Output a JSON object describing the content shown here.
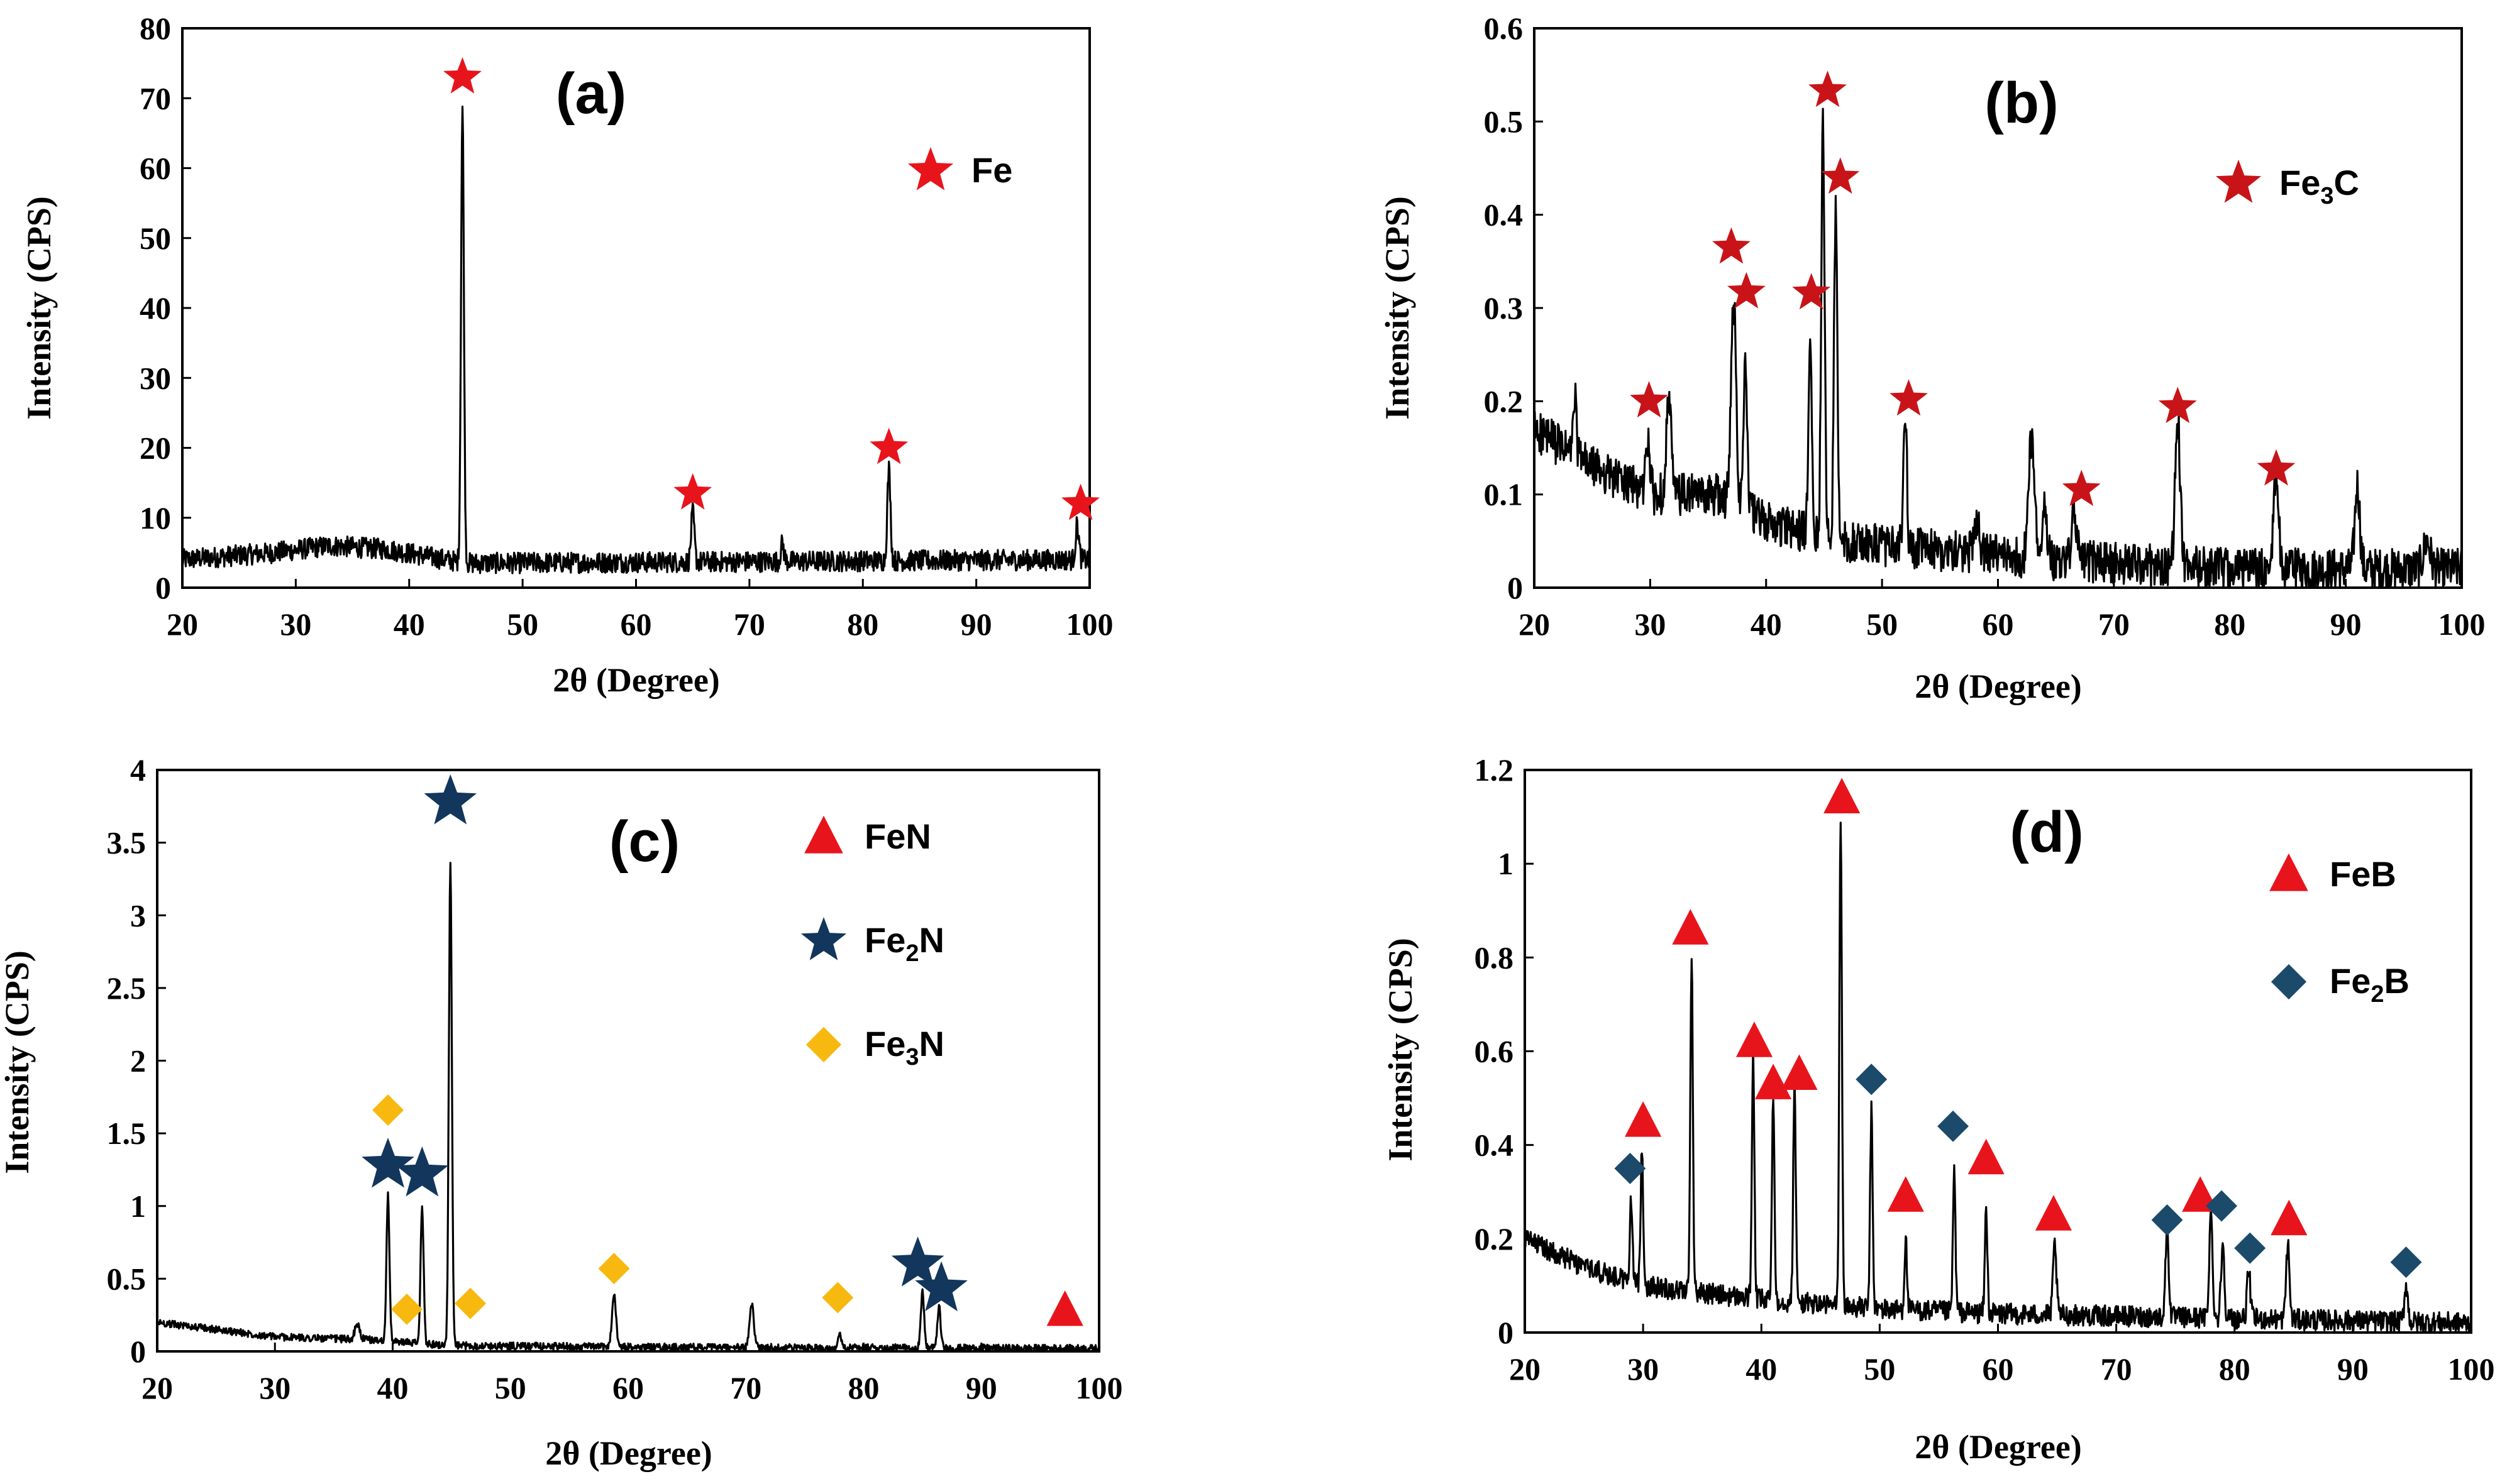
{
  "chart_data": [
    {
      "type": "line",
      "panel_label": "(a)",
      "xlabel": "2θ (Degree)",
      "ylabel": "Intensity (CPS)",
      "xlim": [
        20,
        100
      ],
      "ylim": [
        0,
        80
      ],
      "xticks": [
        "20",
        "30",
        "40",
        "50",
        "60",
        "70",
        "80",
        "90",
        "100"
      ],
      "yticks": [
        "0",
        "10",
        "20",
        "30",
        "40",
        "50",
        "60",
        "70",
        "80"
      ],
      "baseline": 4,
      "noise": 3,
      "baseline_profile": [
        [
          20,
          4
        ],
        [
          28,
          5
        ],
        [
          33,
          6
        ],
        [
          38,
          5.5
        ],
        [
          45,
          3.5
        ],
        [
          100,
          4
        ]
      ],
      "peaks": [
        [
          44.7,
          65,
          0.18
        ],
        [
          65.0,
          7,
          0.2
        ],
        [
          72.9,
          2.5,
          0.2
        ],
        [
          82.3,
          13,
          0.2
        ],
        [
          98.9,
          5,
          0.2
        ]
      ],
      "legend": [
        {
          "marker": "star",
          "color": "#e8141c",
          "label": "Fe",
          "sub": ""
        }
      ],
      "markers": [
        {
          "type": "star",
          "color": "#e8141c",
          "x": 44.7,
          "y": 73
        },
        {
          "type": "star",
          "color": "#e8141c",
          "x": 65.0,
          "y": 13.5
        },
        {
          "type": "star",
          "color": "#e8141c",
          "x": 82.3,
          "y": 20
        },
        {
          "type": "star",
          "color": "#e8141c",
          "x": 99.2,
          "y": 12
        }
      ]
    },
    {
      "type": "line",
      "panel_label": "(b)",
      "xlabel": "2θ (Degree)",
      "ylabel": "Intensity  (CPS)",
      "xlim": [
        20,
        100
      ],
      "ylim": [
        0,
        0.6
      ],
      "xticks": [
        "20",
        "30",
        "40",
        "50",
        "60",
        "70",
        "80",
        "90",
        "100"
      ],
      "yticks": [
        "0",
        "0.1",
        "0.2",
        "0.3",
        "0.4",
        "0.5",
        "0.6"
      ],
      "baseline": 0.05,
      "noise": 0.045,
      "baseline_profile": [
        [
          20,
          0.17
        ],
        [
          25,
          0.13
        ],
        [
          30,
          0.1
        ],
        [
          36,
          0.1
        ],
        [
          40,
          0.07
        ],
        [
          46,
          0.05
        ],
        [
          55,
          0.04
        ],
        [
          65,
          0.03
        ],
        [
          80,
          0.02
        ],
        [
          100,
          0.02
        ]
      ],
      "peaks": [
        [
          23.5,
          0.06,
          0.2
        ],
        [
          29.8,
          0.06,
          0.25
        ],
        [
          31.6,
          0.1,
          0.3
        ],
        [
          37.2,
          0.22,
          0.3
        ],
        [
          38.2,
          0.15,
          0.25
        ],
        [
          43.8,
          0.23,
          0.2
        ],
        [
          44.9,
          0.46,
          0.2
        ],
        [
          46.0,
          0.36,
          0.2
        ],
        [
          52.0,
          0.15,
          0.2
        ],
        [
          58.2,
          0.04,
          0.3
        ],
        [
          62.9,
          0.13,
          0.35
        ],
        [
          64.0,
          0.06,
          0.3
        ],
        [
          66.6,
          0.05,
          0.3
        ],
        [
          75.5,
          0.16,
          0.3
        ],
        [
          84.0,
          0.1,
          0.3
        ],
        [
          91.0,
          0.09,
          0.3
        ],
        [
          97.0,
          0.03,
          0.4
        ]
      ],
      "legend": [
        {
          "marker": "star",
          "color": "#c81418",
          "label": "Fe",
          "sub": "3",
          "suffix": "C"
        }
      ],
      "markers": [
        {
          "type": "star",
          "color": "#c81418",
          "x": 29.9,
          "y": 0.2
        },
        {
          "type": "star",
          "color": "#c81418",
          "x": 37.0,
          "y": 0.365
        },
        {
          "type": "star",
          "color": "#c81418",
          "x": 38.3,
          "y": 0.317
        },
        {
          "type": "star",
          "color": "#c81418",
          "x": 43.9,
          "y": 0.316
        },
        {
          "type": "star",
          "color": "#c81418",
          "x": 45.3,
          "y": 0.533
        },
        {
          "type": "star",
          "color": "#c81418",
          "x": 46.4,
          "y": 0.44
        },
        {
          "type": "star",
          "color": "#c81418",
          "x": 52.3,
          "y": 0.202
        },
        {
          "type": "star",
          "color": "#c81418",
          "x": 67.2,
          "y": 0.105
        },
        {
          "type": "star",
          "color": "#c81418",
          "x": 75.5,
          "y": 0.194
        },
        {
          "type": "star",
          "color": "#c81418",
          "x": 84.0,
          "y": 0.127
        }
      ]
    },
    {
      "type": "line",
      "panel_label": "(c)",
      "xlabel": "2θ (Degree)",
      "ylabel": "Intensity (CPS)",
      "xlim": [
        20,
        100
      ],
      "ylim": [
        0,
        4
      ],
      "xticks": [
        "20",
        "30",
        "40",
        "50",
        "60",
        "70",
        "80",
        "90",
        "100"
      ],
      "yticks": [
        "0",
        "0.5",
        "1",
        "1.5",
        "2",
        "2.5",
        "3",
        "3.5",
        "4"
      ],
      "baseline": 0.05,
      "noise": 0.05,
      "baseline_profile": [
        [
          20,
          0.2
        ],
        [
          25,
          0.15
        ],
        [
          30,
          0.1
        ],
        [
          38,
          0.08
        ],
        [
          45,
          0.04
        ],
        [
          60,
          0.03
        ],
        [
          100,
          0.02
        ]
      ],
      "peaks": [
        [
          37.0,
          0.1,
          0.3
        ],
        [
          39.6,
          1.0,
          0.18
        ],
        [
          42.5,
          0.95,
          0.18
        ],
        [
          44.9,
          3.3,
          0.18
        ],
        [
          58.8,
          0.35,
          0.25
        ],
        [
          70.5,
          0.3,
          0.25
        ],
        [
          78.0,
          0.08,
          0.25
        ],
        [
          85.0,
          0.38,
          0.2
        ],
        [
          86.4,
          0.28,
          0.2
        ]
      ],
      "legend": [
        {
          "marker": "triangle",
          "color": "#e8141c",
          "label": "FeN",
          "sub": ""
        },
        {
          "marker": "star",
          "color": "#12365c",
          "label": "Fe",
          "sub": "2",
          "suffix": "N"
        },
        {
          "marker": "diamond",
          "color": "#f7b80f",
          "label": "Fe",
          "sub": "3",
          "suffix": "N"
        }
      ],
      "markers": [
        {
          "type": "star",
          "color": "#12365c",
          "x": 39.6,
          "y": 1.28
        },
        {
          "type": "star",
          "color": "#12365c",
          "x": 42.5,
          "y": 1.22
        },
        {
          "type": "star",
          "color": "#12365c",
          "x": 44.9,
          "y": 3.78
        },
        {
          "type": "star",
          "color": "#12365c",
          "x": 84.6,
          "y": 0.6
        },
        {
          "type": "star",
          "color": "#12365c",
          "x": 86.6,
          "y": 0.43
        },
        {
          "type": "diamond",
          "color": "#f7b80f",
          "x": 39.6,
          "y": 1.66
        },
        {
          "type": "diamond",
          "color": "#f7b80f",
          "x": 41.2,
          "y": 0.29
        },
        {
          "type": "diamond",
          "color": "#f7b80f",
          "x": 46.6,
          "y": 0.33
        },
        {
          "type": "diamond",
          "color": "#f7b80f",
          "x": 58.8,
          "y": 0.57
        },
        {
          "type": "diamond",
          "color": "#f7b80f",
          "x": 77.8,
          "y": 0.37
        },
        {
          "type": "triangle",
          "color": "#e8141c",
          "x": 97.1,
          "y": 0.28
        }
      ]
    },
    {
      "type": "line",
      "panel_label": "(d)",
      "xlabel": "2θ (Degree)",
      "ylabel": "Intensity (CPS)",
      "xlim": [
        20,
        100
      ],
      "ylim": [
        0,
        1.2
      ],
      "xticks": [
        "20",
        "30",
        "40",
        "50",
        "60",
        "70",
        "80",
        "90",
        "100"
      ],
      "yticks": [
        "0",
        "0.2",
        "0.4",
        "0.6",
        "0.8",
        "1",
        "1.2"
      ],
      "baseline": 0.05,
      "noise": 0.045,
      "baseline_profile": [
        [
          20,
          0.2
        ],
        [
          25,
          0.14
        ],
        [
          30,
          0.1
        ],
        [
          40,
          0.07
        ],
        [
          50,
          0.05
        ],
        [
          60,
          0.04
        ],
        [
          80,
          0.03
        ],
        [
          100,
          0.02
        ]
      ],
      "peaks": [
        [
          29.0,
          0.18,
          0.15
        ],
        [
          29.9,
          0.3,
          0.15
        ],
        [
          34.1,
          0.72,
          0.15
        ],
        [
          39.3,
          0.52,
          0.15
        ],
        [
          41.0,
          0.44,
          0.15
        ],
        [
          42.8,
          0.47,
          0.15
        ],
        [
          46.7,
          1.05,
          0.15
        ],
        [
          49.3,
          0.42,
          0.15
        ],
        [
          52.2,
          0.15,
          0.15
        ],
        [
          56.3,
          0.3,
          0.15
        ],
        [
          59.0,
          0.22,
          0.15
        ],
        [
          64.8,
          0.15,
          0.2
        ],
        [
          74.3,
          0.18,
          0.2
        ],
        [
          78.0,
          0.22,
          0.2
        ],
        [
          79.0,
          0.16,
          0.2
        ],
        [
          81.2,
          0.1,
          0.2
        ],
        [
          84.5,
          0.16,
          0.2
        ],
        [
          94.5,
          0.08,
          0.2
        ]
      ],
      "legend": [
        {
          "marker": "triangle",
          "color": "#e8141c",
          "label": "FeB",
          "sub": ""
        },
        {
          "marker": "diamond",
          "color": "#1b4a6b",
          "label": "Fe",
          "sub": "2",
          "suffix": "B"
        }
      ],
      "markers": [
        {
          "type": "triangle",
          "color": "#e8141c",
          "x": 30.0,
          "y": 0.45
        },
        {
          "type": "triangle",
          "color": "#e8141c",
          "x": 34.0,
          "y": 0.86
        },
        {
          "type": "triangle",
          "color": "#e8141c",
          "x": 39.4,
          "y": 0.62
        },
        {
          "type": "triangle",
          "color": "#e8141c",
          "x": 41.0,
          "y": 0.53
        },
        {
          "type": "triangle",
          "color": "#e8141c",
          "x": 43.2,
          "y": 0.55
        },
        {
          "type": "triangle",
          "color": "#e8141c",
          "x": 46.8,
          "y": 1.14
        },
        {
          "type": "triangle",
          "color": "#e8141c",
          "x": 52.2,
          "y": 0.29
        },
        {
          "type": "triangle",
          "color": "#e8141c",
          "x": 59.0,
          "y": 0.37
        },
        {
          "type": "triangle",
          "color": "#e8141c",
          "x": 64.7,
          "y": 0.25
        },
        {
          "type": "triangle",
          "color": "#e8141c",
          "x": 77.1,
          "y": 0.29
        },
        {
          "type": "triangle",
          "color": "#e8141c",
          "x": 84.6,
          "y": 0.24
        },
        {
          "type": "diamond",
          "color": "#1b4a6b",
          "x": 28.9,
          "y": 0.35
        },
        {
          "type": "diamond",
          "color": "#1b4a6b",
          "x": 49.3,
          "y": 0.54
        },
        {
          "type": "diamond",
          "color": "#1b4a6b",
          "x": 56.2,
          "y": 0.44
        },
        {
          "type": "diamond",
          "color": "#1b4a6b",
          "x": 74.3,
          "y": 0.24
        },
        {
          "type": "diamond",
          "color": "#1b4a6b",
          "x": 78.9,
          "y": 0.27
        },
        {
          "type": "diamond",
          "color": "#1b4a6b",
          "x": 81.3,
          "y": 0.18
        },
        {
          "type": "diamond",
          "color": "#1b4a6b",
          "x": 94.5,
          "y": 0.15
        }
      ]
    }
  ]
}
